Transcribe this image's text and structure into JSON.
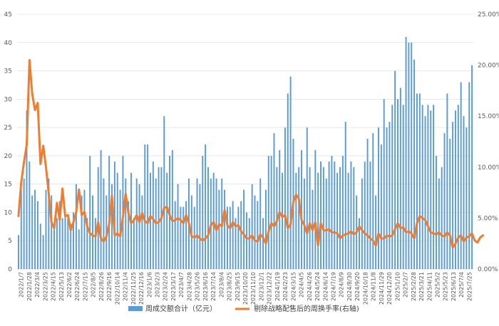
{
  "chart_data": {
    "type": "bar+line",
    "colors": {
      "bars": "#5B9BD5",
      "line": "#ED7D31",
      "grid": "#d9d9d9",
      "axis": "#bfbfbf",
      "text": "#595959"
    },
    "left_axis": {
      "min": 0,
      "max": 45,
      "step": 5,
      "ticks": [
        "0",
        "5",
        "10",
        "15",
        "20",
        "25",
        "30",
        "35",
        "40",
        "45"
      ]
    },
    "right_axis": {
      "min": 0,
      "max": 25,
      "step": 5,
      "ticks": [
        "0.00%",
        "5.00%",
        "10.00%",
        "15.00%",
        "20.00%",
        "25.00%"
      ]
    },
    "x_tick_labels": [
      "2022/1/7",
      "2022/1/28",
      "2022/3/4",
      "2022/3/25",
      "2022/4/15",
      "2022/5/13",
      "2022/6/2",
      "2022/6/24",
      "2022/7/15",
      "2022/8/5",
      "2022/8/26",
      "2022/9/16",
      "2022/10/14",
      "2022/11/4",
      "2022/11/25",
      "2022/12/16",
      "2023/1/6",
      "2023/2/3",
      "2023/2/24",
      "2023/3/17",
      "2023/4/7",
      "2023/4/28",
      "2023/5/26",
      "2023/6/16",
      "2023/7/14",
      "2023/8/4",
      "2023/8/25",
      "2023/9/15",
      "2023/10/20",
      "2023/11/10",
      "2023/12/1",
      "2023/12/22",
      "2024/1/19",
      "2024/2/23",
      "2024/3/15",
      "2024/4/5",
      "2024/4/26",
      "2024/5/24",
      "2024/6/14",
      "2024/7/19",
      "2024/8/9",
      "2024/8/30",
      "2024/9/20",
      "2024/10/18",
      "2024/11/8",
      "2024/11/29",
      "2024/12/20",
      "2025/1/10",
      "2025/2/7",
      "2025/2/28",
      "2025/3/21",
      "2025/4/11",
      "2025/5/2",
      "2025/5/23",
      "2025/6/13",
      "2025/7/4",
      "2025/7/25"
    ],
    "legend": [
      {
        "type": "bar",
        "label": "周成交额合计（亿元）"
      },
      {
        "type": "line",
        "label": "剔除战略配售后的周换手率(右轴)"
      }
    ],
    "series": [
      {
        "name": "周成交额合计（亿元）",
        "axis": "left",
        "type": "bar",
        "values": [
          6,
          14,
          16,
          28,
          19,
          13,
          14,
          12,
          8,
          6,
          14,
          16,
          13,
          7,
          9,
          12,
          9,
          10,
          9,
          8,
          10,
          15,
          7,
          13,
          14,
          9,
          20,
          13,
          9,
          18,
          21,
          16,
          13,
          20,
          15,
          19,
          17,
          14,
          20,
          16,
          12,
          17,
          9,
          16,
          15,
          13,
          22,
          22,
          17,
          19,
          16,
          18,
          18,
          27,
          17,
          20,
          21,
          12,
          15,
          11,
          11,
          12,
          16,
          13,
          11,
          16,
          15,
          20,
          22,
          18,
          16,
          17,
          16,
          14,
          16,
          14,
          11,
          11,
          12,
          9,
          11,
          12,
          14,
          10,
          9,
          15,
          13,
          12,
          16,
          9,
          14,
          20,
          20,
          24,
          18,
          21,
          17,
          25,
          31,
          34,
          23,
          17,
          18,
          21,
          16,
          25,
          18,
          14,
          21,
          17,
          19,
          18,
          16,
          19,
          20,
          19,
          17,
          18,
          20,
          26,
          17,
          19,
          18,
          13,
          9,
          16,
          19,
          23,
          19,
          24,
          13,
          25,
          22,
          30,
          25,
          26,
          29,
          35,
          30,
          32,
          29,
          41,
          40,
          40,
          37,
          31,
          31,
          29,
          27,
          29,
          28,
          29,
          20,
          16,
          18,
          24,
          31,
          23,
          26,
          28,
          29,
          33,
          27,
          25,
          33,
          36
        ]
      },
      {
        "name": "剔除战略配售后的周换手率(右轴)",
        "axis": "right",
        "type": "line",
        "values": [
          5.2,
          8.5,
          10.5,
          12.2,
          20.5,
          17.2,
          15.6,
          16.3,
          10.3,
          12.1,
          10.0,
          7.4,
          4.6,
          4.0,
          6.5,
          4.8,
          7.9,
          5.2,
          5.3,
          3.8,
          4.6,
          5.6,
          7.8,
          5.3,
          5.6,
          4.2,
          3.5,
          3.3,
          3.2,
          4.6,
          3.0,
          2.7,
          3.2,
          4.4,
          7.2,
          3.3,
          3.5,
          3.2,
          5.1,
          7.4,
          5.5,
          4.5,
          4.8,
          5.3,
          4.6,
          5.5,
          4.7,
          4.5,
          5.2,
          4.9,
          4.5,
          4.6,
          5.0,
          6.0,
          6.1,
          5.3,
          4.7,
          4.8,
          5.0,
          4.8,
          4.5,
          5.3,
          4.5,
          3.2,
          3.1,
          3.3,
          3.0,
          2.8,
          3.0,
          3.3,
          4.3,
          4.6,
          3.8,
          4.4,
          4.2,
          5.8,
          4.3,
          4.0,
          4.6,
          4.2,
          4.3,
          3.7,
          3.4,
          3.0,
          3.0,
          3.3,
          2.8,
          2.7,
          3.4,
          3.1,
          2.5,
          3.7,
          4.5,
          4.2,
          4.7,
          5.6,
          5.1,
          5.3,
          4.0,
          4.4,
          6.6,
          7.3,
          6.9,
          4.8,
          4.3,
          3.5,
          4.5,
          3.8,
          4.6,
          2.3,
          4.5,
          3.8,
          3.8,
          3.9,
          3.6,
          3.6,
          3.5,
          3.0,
          3.3,
          3.4,
          3.5,
          3.7,
          3.4,
          3.6,
          4.2,
          3.8,
          3.5,
          3.3,
          3.0,
          2.8,
          2.3,
          3.5,
          3.0,
          3.0,
          3.3,
          3.2,
          3.3,
          3.9,
          4.5,
          4.0,
          4.1,
          3.6,
          3.7,
          3.5,
          3.0,
          4.5,
          5.2,
          5.0,
          4.8,
          4.2,
          3.6,
          3.5,
          3.4,
          3.6,
          3.3,
          3.2,
          3.6,
          3.3,
          2.1,
          2.5,
          3.1,
          3.3,
          2.7,
          3.1,
          3.2,
          3.5,
          2.8,
          2.6,
          3.1,
          3.3
        ]
      }
    ]
  }
}
